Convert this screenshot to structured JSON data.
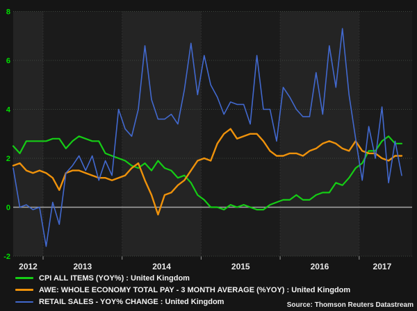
{
  "chart_data": {
    "type": "line",
    "title": "",
    "xlabel": "",
    "ylabel": "",
    "frequency": "monthly",
    "x_start": "2012-08",
    "x_end": "2017-07",
    "ylim": [
      -2,
      8
    ],
    "grid": true,
    "legend_position": "bottom-left",
    "x_tick_labels": [
      "2012",
      "2013",
      "2014",
      "2015",
      "2016",
      "2017"
    ],
    "y_tick_labels": [
      "8",
      "6",
      "4",
      "2",
      "0",
      "-2"
    ],
    "y_ticks": [
      8,
      6,
      4,
      2,
      0,
      -2
    ],
    "series": [
      {
        "name": "CPI ALL ITEMS (YOY%) : United Kingdom",
        "color": "#15cd15",
        "values": [
          2.5,
          2.2,
          2.7,
          2.7,
          2.7,
          2.7,
          2.8,
          2.8,
          2.4,
          2.7,
          2.9,
          2.8,
          2.7,
          2.7,
          2.2,
          2.1,
          2.0,
          1.9,
          1.7,
          1.6,
          1.8,
          1.5,
          1.9,
          1.6,
          1.5,
          1.2,
          1.3,
          1.0,
          0.5,
          0.3,
          0.0,
          0.0,
          -0.1,
          0.1,
          0.0,
          0.1,
          0.0,
          -0.1,
          -0.1,
          0.1,
          0.2,
          0.3,
          0.3,
          0.5,
          0.3,
          0.3,
          0.5,
          0.6,
          0.6,
          1.0,
          0.9,
          1.2,
          1.6,
          1.8,
          2.3,
          2.3,
          2.7,
          2.9,
          2.6,
          2.6
        ]
      },
      {
        "name": "AWE: WHOLE ECONOMY TOTAL PAY - 3 MONTH AVERAGE (%YOY) : United Kingdom",
        "color": "#ef920b",
        "values": [
          1.7,
          1.8,
          1.5,
          1.4,
          1.5,
          1.4,
          1.2,
          0.7,
          1.4,
          1.5,
          1.5,
          1.4,
          1.3,
          1.2,
          1.2,
          1.1,
          1.2,
          1.3,
          1.6,
          1.8,
          1.1,
          0.5,
          -0.3,
          0.5,
          0.6,
          0.9,
          1.1,
          1.5,
          1.9,
          2.0,
          1.9,
          2.6,
          3.0,
          3.2,
          2.8,
          2.9,
          3.0,
          3.0,
          2.7,
          2.3,
          2.1,
          2.1,
          2.2,
          2.2,
          2.1,
          2.3,
          2.4,
          2.6,
          2.7,
          2.6,
          2.4,
          2.3,
          2.7,
          2.3,
          2.2,
          2.2,
          2.0,
          1.9,
          2.1,
          2.1
        ]
      },
      {
        "name": "RETAIL SALES - YOY% CHANGE : United Kingdom",
        "color": "#4269cf",
        "values": [
          1.6,
          0.0,
          0.1,
          -0.1,
          0.0,
          -1.6,
          0.2,
          -0.7,
          1.4,
          1.7,
          2.1,
          1.5,
          2.1,
          1.1,
          1.9,
          1.3,
          4.0,
          3.2,
          2.9,
          4.0,
          6.6,
          4.4,
          3.6,
          3.6,
          3.8,
          3.4,
          4.8,
          6.7,
          4.6,
          6.2,
          5.0,
          4.5,
          3.8,
          4.3,
          4.2,
          4.2,
          3.4,
          6.2,
          4.0,
          4.0,
          2.7,
          4.9,
          4.5,
          4.0,
          3.7,
          3.7,
          5.5,
          3.8,
          6.6,
          4.9,
          7.3,
          4.6,
          2.8,
          1.1,
          3.3,
          2.0,
          4.1,
          1.0,
          2.7,
          1.3
        ]
      }
    ],
    "source": "Source: Thomson Reuters Datastream"
  },
  "legend": {
    "items": [
      {
        "label": "CPI ALL ITEMS (YOY%) : United Kingdom"
      },
      {
        "label": "AWE: WHOLE ECONOMY TOTAL PAY - 3 MONTH AVERAGE (%YOY) : United Kingdom"
      },
      {
        "label": "RETAIL SALES - YOY% CHANGE : United Kingdom"
      }
    ]
  },
  "source_text": "Source: Thomson Reuters Datastream",
  "colors": {
    "outer_background": "#151515",
    "band_light": "#242424",
    "band_dark": "#1b1b1b",
    "h_gridline": "#3e463e",
    "v_gridline": "#3f3f3f",
    "zero_line": "#a8a8a8",
    "tick": "#9a9a9a",
    "y_label": "#00e000",
    "x_label": "#e8e8e8"
  }
}
